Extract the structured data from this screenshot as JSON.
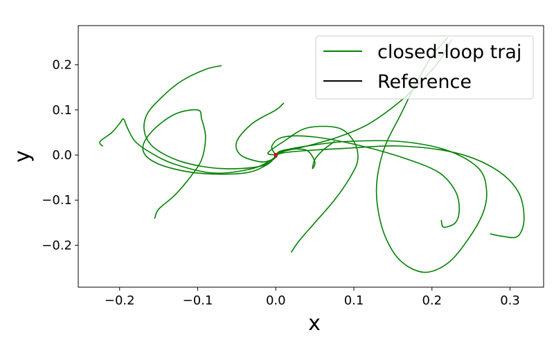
{
  "chart_data": {
    "type": "line",
    "title": "",
    "xlabel": "x",
    "ylabel": "y",
    "xlim": [
      -0.253,
      0.343
    ],
    "ylim": [
      -0.293,
      0.287
    ],
    "xticks": [
      -0.2,
      -0.1,
      0.0,
      0.1,
      0.2,
      0.3
    ],
    "xtick_labels": [
      "−0.2",
      "−0.1",
      "0.0",
      "0.1",
      "0.2",
      "0.3"
    ],
    "yticks": [
      -0.2,
      -0.1,
      0.0,
      0.1,
      0.2
    ],
    "ytick_labels": [
      "−0.2",
      "−0.1",
      "0.0",
      "0.1",
      "0.2"
    ],
    "grid": false,
    "legend_position": "top-right",
    "legend": [
      {
        "name": "closed-loop traj",
        "color": "#008000"
      },
      {
        "name": "Reference",
        "color": "#000000"
      }
    ],
    "series": [
      {
        "name": "closed-loop traj",
        "color": "#008000",
        "trajectories": [
          [
            [
              -0.07,
              0.198
            ],
            [
              -0.09,
              0.19
            ],
            [
              -0.12,
              0.165
            ],
            [
              -0.145,
              0.13
            ],
            [
              -0.165,
              0.09
            ],
            [
              -0.168,
              0.05
            ],
            [
              -0.155,
              0.015
            ],
            [
              -0.12,
              -0.015
            ],
            [
              -0.07,
              -0.03
            ],
            [
              -0.02,
              -0.025
            ],
            [
              0.0,
              -0.005
            ],
            [
              0.0,
              0.0
            ]
          ],
          [
            [
              -0.222,
              0.02
            ],
            [
              -0.225,
              0.03
            ],
            [
              -0.21,
              0.05
            ],
            [
              -0.2,
              0.07
            ],
            [
              -0.195,
              0.08
            ],
            [
              -0.19,
              0.06
            ],
            [
              -0.18,
              0.03
            ],
            [
              -0.16,
              0.005
            ],
            [
              -0.13,
              -0.02
            ],
            [
              -0.08,
              -0.04
            ],
            [
              -0.03,
              -0.03
            ],
            [
              -0.005,
              -0.01
            ],
            [
              0.0,
              0.0
            ]
          ],
          [
            [
              -0.155,
              -0.14
            ],
            [
              -0.15,
              -0.12
            ],
            [
              -0.13,
              -0.09
            ],
            [
              -0.11,
              -0.05
            ],
            [
              -0.095,
              -0.01
            ],
            [
              -0.09,
              0.04
            ],
            [
              -0.095,
              0.08
            ],
            [
              -0.1,
              0.1
            ],
            [
              -0.13,
              0.09
            ],
            [
              -0.16,
              0.05
            ],
            [
              -0.17,
              0.01
            ],
            [
              -0.15,
              -0.02
            ],
            [
              -0.1,
              -0.04
            ],
            [
              -0.04,
              -0.04
            ],
            [
              -0.01,
              -0.02
            ],
            [
              0.0,
              0.0
            ]
          ],
          [
            [
              0.01,
              0.115
            ],
            [
              0.0,
              0.1
            ],
            [
              -0.03,
              0.07
            ],
            [
              -0.05,
              0.03
            ],
            [
              -0.045,
              0.0
            ],
            [
              -0.02,
              -0.015
            ],
            [
              -0.005,
              -0.01
            ],
            [
              0.0,
              0.0
            ]
          ],
          [
            [
              0.075,
              0.03
            ],
            [
              0.06,
              0.01
            ],
            [
              0.05,
              -0.01
            ],
            [
              0.047,
              -0.03
            ],
            [
              0.05,
              -0.015
            ],
            [
              0.04,
              0.01
            ],
            [
              0.02,
              0.013
            ],
            [
              0.005,
              0.008
            ],
            [
              0.0,
              0.0
            ]
          ],
          [
            [
              0.02,
              -0.215
            ],
            [
              0.03,
              -0.19
            ],
            [
              0.05,
              -0.15
            ],
            [
              0.075,
              -0.1
            ],
            [
              0.095,
              -0.05
            ],
            [
              0.105,
              -0.01
            ],
            [
              0.1,
              0.03
            ],
            [
              0.08,
              0.06
            ],
            [
              0.04,
              0.06
            ],
            [
              0.01,
              0.03
            ],
            [
              -0.01,
              0.005
            ],
            [
              0.0,
              0.0
            ]
          ],
          [
            [
              0.22,
              0.26
            ],
            [
              0.2,
              0.22
            ],
            [
              0.18,
              0.16
            ],
            [
              0.16,
              0.09
            ],
            [
              0.14,
              0.02
            ],
            [
              0.13,
              -0.05
            ],
            [
              0.13,
              -0.11
            ],
            [
              0.14,
              -0.18
            ],
            [
              0.16,
              -0.235
            ],
            [
              0.19,
              -0.26
            ],
            [
              0.22,
              -0.24
            ],
            [
              0.245,
              -0.19
            ],
            [
              0.265,
              -0.13
            ],
            [
              0.27,
              -0.08
            ],
            [
              0.26,
              -0.03
            ],
            [
              0.22,
              0.01
            ],
            [
              0.16,
              0.03
            ],
            [
              0.09,
              0.03
            ],
            [
              0.04,
              0.02
            ],
            [
              0.01,
              0.01
            ],
            [
              0.0,
              0.0
            ]
          ],
          [
            [
              0.212,
              -0.145
            ],
            [
              0.215,
              -0.16
            ],
            [
              0.23,
              -0.15
            ],
            [
              0.235,
              -0.12
            ],
            [
              0.23,
              -0.08
            ],
            [
              0.21,
              -0.04
            ],
            [
              0.17,
              -0.01
            ],
            [
              0.11,
              0.02
            ],
            [
              0.05,
              0.04
            ],
            [
              0.01,
              0.04
            ],
            [
              -0.005,
              0.02
            ],
            [
              0.0,
              0.0
            ]
          ],
          [
            [
              0.275,
              -0.175
            ],
            [
              0.29,
              -0.18
            ],
            [
              0.31,
              -0.18
            ],
            [
              0.318,
              -0.14
            ],
            [
              0.31,
              -0.08
            ],
            [
              0.28,
              -0.03
            ],
            [
              0.23,
              0.005
            ],
            [
              0.16,
              0.02
            ],
            [
              0.09,
              0.015
            ],
            [
              0.04,
              0.01
            ],
            [
              0.01,
              0.005
            ],
            [
              0.0,
              0.0
            ]
          ],
          [
            [
              0.225,
              0.255
            ],
            [
              0.22,
              0.24
            ],
            [
              0.21,
              0.21
            ],
            [
              0.19,
              0.17
            ],
            [
              0.16,
              0.12
            ],
            [
              0.12,
              0.07
            ],
            [
              0.08,
              0.04
            ],
            [
              0.04,
              0.02
            ],
            [
              0.01,
              0.008
            ],
            [
              0.0,
              0.0
            ]
          ]
        ]
      },
      {
        "name": "Reference",
        "color": "#000000",
        "x": [
          0.0
        ],
        "y": [
          0.0
        ]
      }
    ],
    "markers": [
      {
        "x": 0.0,
        "y": 0.0,
        "color": "#e60000"
      }
    ]
  }
}
